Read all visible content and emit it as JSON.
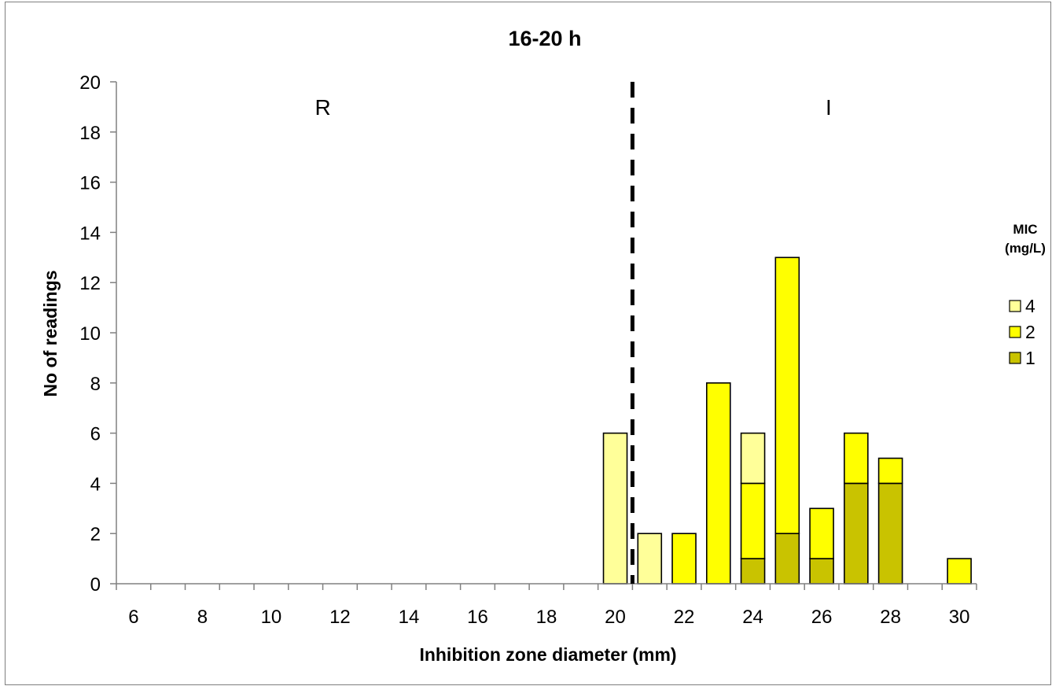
{
  "chart_data": {
    "type": "bar",
    "stacked": true,
    "title": "16-20 h",
    "xlabel": "Inhibition zone diameter (mm)",
    "ylabel": "No of readings",
    "x": [
      6,
      7,
      8,
      9,
      10,
      11,
      12,
      13,
      14,
      15,
      16,
      17,
      18,
      19,
      20,
      21,
      22,
      23,
      24,
      25,
      26,
      27,
      28,
      29,
      30
    ],
    "x_ticks": [
      6,
      8,
      10,
      12,
      14,
      16,
      18,
      20,
      22,
      24,
      26,
      28,
      30
    ],
    "ylim": [
      0,
      20
    ],
    "y_ticks": [
      0,
      2,
      4,
      6,
      8,
      10,
      12,
      14,
      16,
      18,
      20
    ],
    "grid": false,
    "legend": {
      "title": "MIC (mg/L)",
      "position": "right",
      "entries": [
        "4",
        "2",
        "1"
      ]
    },
    "series": [
      {
        "name": "1",
        "color": "#c9c300",
        "values": [
          0,
          0,
          0,
          0,
          0,
          0,
          0,
          0,
          0,
          0,
          0,
          0,
          0,
          0,
          0,
          0,
          0,
          0,
          1,
          2,
          1,
          4,
          4,
          0,
          0
        ]
      },
      {
        "name": "2",
        "color": "#ffff00",
        "values": [
          0,
          0,
          0,
          0,
          0,
          0,
          0,
          0,
          0,
          0,
          0,
          0,
          0,
          0,
          0,
          0,
          2,
          8,
          3,
          11,
          2,
          2,
          1,
          0,
          1
        ]
      },
      {
        "name": "4",
        "color": "#ffff99",
        "values": [
          0,
          0,
          0,
          0,
          0,
          0,
          0,
          0,
          0,
          0,
          0,
          0,
          0,
          0,
          6,
          2,
          0,
          0,
          2,
          0,
          0,
          0,
          0,
          0,
          0
        ]
      }
    ],
    "breakpoint": 20.5,
    "annotations": [
      {
        "text": "R",
        "x": 11.5,
        "y": 19
      },
      {
        "text": "I",
        "x": 26.2,
        "y": 19
      }
    ]
  }
}
